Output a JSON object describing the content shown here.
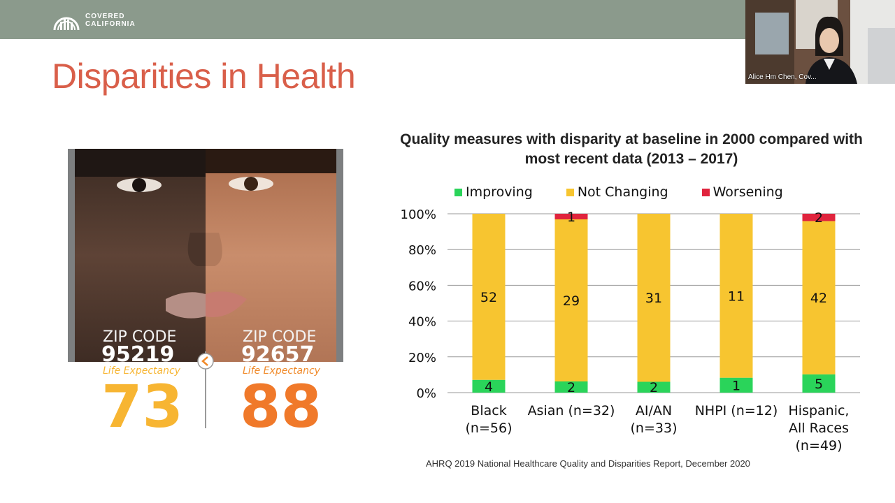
{
  "header": {
    "logo_line1": "COVERED",
    "logo_line2": "CALIFORNIA"
  },
  "slide": {
    "title": "Disparities in Health",
    "source": "AHRQ 2019 National Healthcare Quality and Disparities Report, December 2020"
  },
  "video": {
    "participant_name": "Alice Hm Chen, Cov..."
  },
  "photo": {
    "left": {
      "zip_label": "ZIP CODE",
      "zip": "95219",
      "le_label": "Life Expectancy",
      "le_value": "73"
    },
    "right": {
      "zip_label": "ZIP CODE",
      "zip": "92657",
      "le_label": "Life Expectancy",
      "le_value": "88"
    },
    "divider_icon": "chevron-left-icon"
  },
  "colors": {
    "improving": "#2ad45a",
    "not_changing": "#f7c530",
    "worsening": "#e0243d",
    "title_red": "#d95f4a",
    "topbar": "#8b9a8c"
  },
  "chart_data": {
    "type": "bar",
    "stacked": true,
    "percent_stacked": true,
    "title": "Quality measures with disparity at baseline in 2000 compared with most recent data (2013 – 2017)",
    "categories": [
      [
        "Black",
        "(n=56)"
      ],
      [
        "Asian (n=32)"
      ],
      [
        "AI/AN",
        "(n=33)"
      ],
      [
        "NHPI (n=12)"
      ],
      [
        "Hispanic,",
        "All Races",
        "(n=49)"
      ]
    ],
    "series": [
      {
        "name": "Improving",
        "values": [
          4,
          2,
          2,
          1,
          5
        ]
      },
      {
        "name": "Not Changing",
        "values": [
          52,
          29,
          31,
          11,
          42
        ]
      },
      {
        "name": "Worsening",
        "values": [
          0,
          1,
          0,
          0,
          2
        ]
      }
    ],
    "yticks": [
      "0%",
      "20%",
      "40%",
      "60%",
      "80%",
      "100%"
    ],
    "ylim": [
      0,
      100
    ],
    "grid": true,
    "legend": "top"
  }
}
